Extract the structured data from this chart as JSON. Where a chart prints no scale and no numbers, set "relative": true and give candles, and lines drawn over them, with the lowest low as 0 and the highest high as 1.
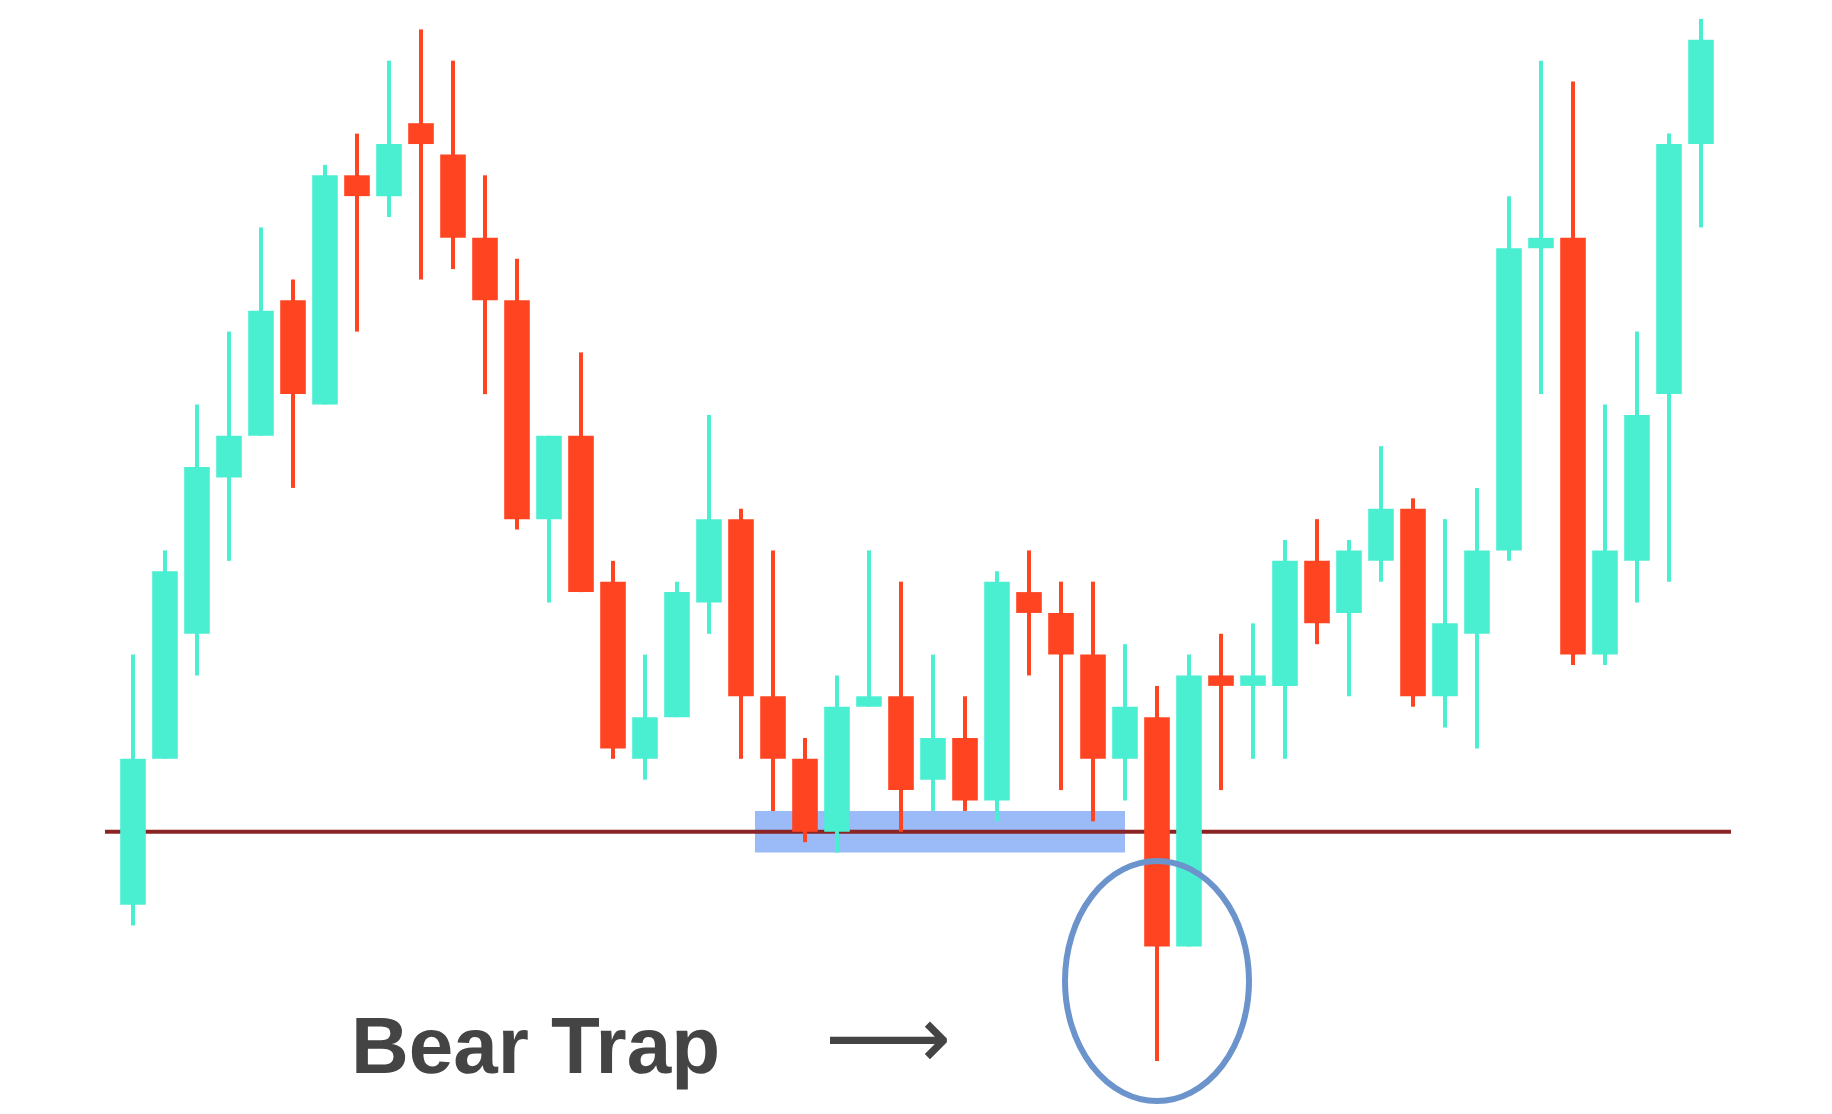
{
  "chart_data": {
    "type": "candlestick",
    "relative": true,
    "categories": [
      null,
      null,
      null,
      null,
      null,
      null,
      null,
      null,
      null,
      null,
      null,
      null,
      null,
      null,
      null,
      null,
      null,
      null,
      null,
      null,
      null,
      null,
      null,
      null,
      null,
      null,
      null,
      null,
      null,
      null,
      null,
      null,
      null,
      null,
      null,
      null,
      null,
      null,
      null,
      null,
      null,
      null,
      null,
      null,
      null,
      null,
      null,
      null,
      null,
      null
    ],
    "ohlc": [
      [
        0.15,
        0.39,
        0.13,
        0.29
      ],
      [
        0.29,
        0.49,
        0.29,
        0.47
      ],
      [
        0.41,
        0.63,
        0.37,
        0.57
      ],
      [
        0.56,
        0.7,
        0.48,
        0.6
      ],
      [
        0.6,
        0.8,
        0.6,
        0.72
      ],
      [
        0.73,
        0.75,
        0.55,
        0.64
      ],
      [
        0.63,
        0.86,
        0.63,
        0.85
      ],
      [
        0.85,
        0.89,
        0.7,
        0.83
      ],
      [
        0.83,
        0.96,
        0.81,
        0.88
      ],
      [
        0.9,
        0.99,
        0.75,
        0.88
      ],
      [
        0.87,
        0.96,
        0.76,
        0.79
      ],
      [
        0.79,
        0.85,
        0.64,
        0.73
      ],
      [
        0.73,
        0.77,
        0.51,
        0.52
      ],
      [
        0.52,
        0.6,
        0.44,
        0.6
      ],
      [
        0.6,
        0.68,
        0.45,
        0.45
      ],
      [
        0.46,
        0.48,
        0.29,
        0.3
      ],
      [
        0.29,
        0.39,
        0.27,
        0.33
      ],
      [
        0.33,
        0.46,
        0.33,
        0.45
      ],
      [
        0.44,
        0.62,
        0.41,
        0.52
      ],
      [
        0.52,
        0.53,
        0.29,
        0.35
      ],
      [
        0.35,
        0.49,
        0.24,
        0.29
      ],
      [
        0.29,
        0.31,
        0.21,
        0.22
      ],
      [
        0.22,
        0.37,
        0.2,
        0.34
      ],
      [
        0.34,
        0.49,
        0.34,
        0.35
      ],
      [
        0.35,
        0.46,
        0.22,
        0.26
      ],
      [
        0.27,
        0.39,
        0.24,
        0.31
      ],
      [
        0.31,
        0.35,
        0.24,
        0.25
      ],
      [
        0.25,
        0.47,
        0.23,
        0.46
      ],
      [
        0.45,
        0.49,
        0.37,
        0.43
      ],
      [
        0.43,
        0.46,
        0.26,
        0.39
      ],
      [
        0.39,
        0.46,
        0.23,
        0.29
      ],
      [
        0.29,
        0.4,
        0.25,
        0.34
      ],
      [
        0.33,
        0.36,
        0,
        0.11
      ],
      [
        0.11,
        0.39,
        0.11,
        0.37
      ],
      [
        0.37,
        0.41,
        0.26,
        0.36
      ],
      [
        0.36,
        0.42,
        0.29,
        0.37
      ],
      [
        0.36,
        0.5,
        0.29,
        0.48
      ],
      [
        0.48,
        0.52,
        0.4,
        0.42
      ],
      [
        0.43,
        0.5,
        0.35,
        0.49
      ],
      [
        0.48,
        0.59,
        0.46,
        0.53
      ],
      [
        0.53,
        0.54,
        0.34,
        0.35
      ],
      [
        0.35,
        0.52,
        0.32,
        0.42
      ],
      [
        0.41,
        0.55,
        0.3,
        0.49
      ],
      [
        0.49,
        0.83,
        0.48,
        0.78
      ],
      [
        0.78,
        0.96,
        0.64,
        0.79
      ],
      [
        0.79,
        0.94,
        0.38,
        0.39
      ],
      [
        0.39,
        0.63,
        0.38,
        0.49
      ],
      [
        0.48,
        0.7,
        0.44,
        0.62
      ],
      [
        0.64,
        0.89,
        0.46,
        0.88
      ],
      [
        0.88,
        1,
        0.8,
        0.98
      ]
    ],
    "colors": [
      "#4aefd2",
      "#4aefd2",
      "#4aefd2",
      "#4aefd2",
      "#4aefd2",
      "#ff4422",
      "#4aefd2",
      "#ff4422",
      "#4aefd2",
      "#ff4422",
      "#ff4422",
      "#ff4422",
      "#ff4422",
      "#4aefd2",
      "#ff4422",
      "#ff4422",
      "#4aefd2",
      "#4aefd2",
      "#4aefd2",
      "#ff4422",
      "#ff4422",
      "#ff4422",
      "#4aefd2",
      "#4aefd2",
      "#ff4422",
      "#4aefd2",
      "#ff4422",
      "#4aefd2",
      "#ff4422",
      "#ff4422",
      "#ff4422",
      "#4aefd2",
      "#ff4422",
      "#4aefd2",
      "#ff4422",
      "#4aefd2",
      "#4aefd2",
      "#ff4422",
      "#4aefd2",
      "#4aefd2",
      "#ff4422",
      "#4aefd2",
      "#4aefd2",
      "#4aefd2",
      "#4aefd2",
      "#ff4422",
      "#4aefd2",
      "#4aefd2",
      "#4aefd2",
      "#4aefd2"
    ],
    "ref_lines": [
      {
        "axis": "y",
        "value": 0.22,
        "color": "#8b2525"
      }
    ],
    "bands": [
      {
        "axis": "y",
        "from": 0.2,
        "to": 0.24,
        "color": "#6f9cf5"
      }
    ],
    "annotations": [
      "Bear Trap",
      "⟶"
    ]
  }
}
